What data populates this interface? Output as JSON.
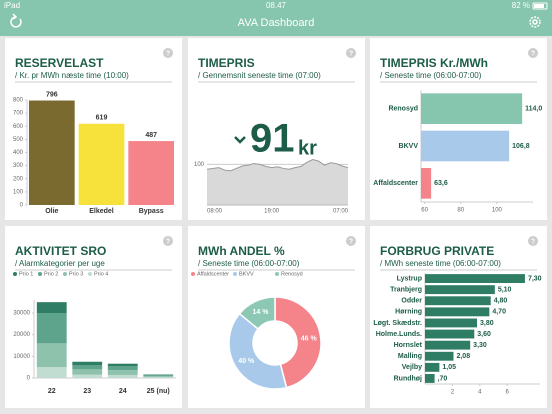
{
  "status_bar": {
    "device": "iPad",
    "time": "08.47",
    "battery": "82 %"
  },
  "header": {
    "title": "AVA Dashboard"
  },
  "help_icon": "?",
  "cards": [
    {
      "title": "RESERVELAST",
      "subtitle": "/ Kr. pr MWh næste time (10:00)",
      "chart": {
        "type": "bar",
        "categories": [
          "Olie",
          "Elkedel",
          "Bypass"
        ],
        "values": [
          796,
          619,
          487
        ],
        "colors": [
          "#7b6a30",
          "#f7e23c",
          "#f4838a"
        ],
        "ylim": [
          0,
          800
        ],
        "yticks": [
          0,
          100,
          200,
          300,
          400,
          500,
          600,
          700,
          800
        ]
      }
    },
    {
      "title": "TIMEPRIS",
      "subtitle": "/ Gennemsnit seneste time (07:00)",
      "big_value": "91",
      "big_unit": "kr",
      "chart": {
        "type": "area",
        "categories": [
          "08:00",
          null,
          null,
          null,
          null,
          null,
          null,
          null,
          null,
          null,
          null,
          "19:00",
          null,
          null,
          null,
          null,
          null,
          null,
          null,
          null,
          null,
          null,
          null,
          null,
          "07:00"
        ],
        "values": [
          88,
          90,
          92,
          86,
          84,
          90,
          96,
          98,
          102,
          100,
          95,
          92,
          94,
          90,
          88,
          92,
          95,
          105,
          112,
          108,
          98,
          104,
          102,
          96,
          92
        ],
        "color": "#d9d9d9",
        "ylim": [
          0,
          160
        ],
        "yticks": [
          100
        ],
        "grid": true
      }
    },
    {
      "title": "TIMEPRIS Kr./MWh",
      "subtitle": "/ Seneste time (06:00-07:00)",
      "chart": {
        "type": "hbar",
        "categories": [
          "Renosyd",
          "BKVV",
          "Affaldscenter"
        ],
        "values": [
          114.0,
          106.8,
          63.6
        ],
        "value_labels": [
          "114,0",
          "106,8",
          "63,6"
        ],
        "colors": [
          "#86c5ae",
          "#a9c9ea",
          "#f4838a"
        ],
        "xlim": [
          58,
          120
        ],
        "xticks": [
          60,
          80,
          100
        ]
      }
    },
    {
      "title": "AKTIVITET SRO",
      "subtitle": "/ Alarmkategorier per uge",
      "chart": {
        "type": "stacked_bar",
        "categories": [
          "22",
          "23",
          "24",
          "25 (nu)"
        ],
        "series": [
          {
            "name": "Prio 1",
            "color": "#2e7d64",
            "values": [
              5000,
              1500,
              1200,
              300
            ]
          },
          {
            "name": "Prio 2",
            "color": "#5ea38b",
            "values": [
              14000,
              2000,
              1800,
              400
            ]
          },
          {
            "name": "Prio 3",
            "color": "#8fc2ad",
            "values": [
              11000,
              2500,
              2200,
              500
            ]
          },
          {
            "name": "Prio 4",
            "color": "#c1ddd1",
            "values": [
              5000,
              1500,
              1400,
              400
            ]
          }
        ],
        "ylim": [
          0,
          36000
        ],
        "yticks": [
          0,
          10000,
          20000,
          30000
        ]
      }
    },
    {
      "title": "MWh ANDEL %",
      "subtitle": "/ Seneste time (06:00-07:00)",
      "chart": {
        "type": "donut",
        "categories": [
          "Affaldscenter",
          "BKVV",
          "Renosyd"
        ],
        "values": [
          46,
          40,
          14
        ],
        "value_labels": [
          "46 %",
          "40 %",
          "14 %"
        ],
        "colors": [
          "#f4838a",
          "#a9c9ea",
          "#8cc8b3"
        ]
      }
    },
    {
      "title": "FORBRUG PRIVATE",
      "subtitle": "/ MWh seneste time (06:00-07:00)",
      "chart": {
        "type": "hbar",
        "categories": [
          "Lystrup",
          "Tranbjerg",
          "Odder",
          "Hørning",
          "Løgt. Skædstr.",
          "Holme.Lunds.",
          "Hornslet",
          "Malling",
          "Vejlby",
          "Rundhøj"
        ],
        "values": [
          7.3,
          5.1,
          4.8,
          4.7,
          3.8,
          3.6,
          3.3,
          2.08,
          1.05,
          0.7
        ],
        "value_labels": [
          "7,30",
          "5,10",
          "4,80",
          "4,70",
          "3,80",
          "3,60",
          "3,30",
          "2,08",
          "1,05",
          ",70"
        ],
        "color": "#2e7d64",
        "xlim": [
          0,
          8.4
        ],
        "xticks": [
          2,
          4,
          6
        ]
      }
    }
  ]
}
